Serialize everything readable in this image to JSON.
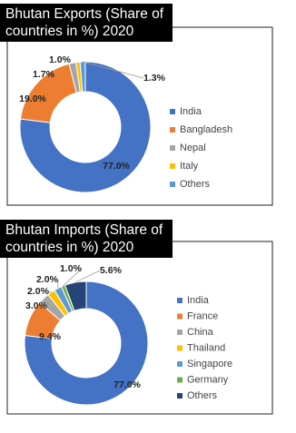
{
  "chart_data": [
    {
      "type": "pie",
      "title": "Bhutan Exports (Share of countries in %) 2020",
      "categories": [
        "India",
        "Bangladesh",
        "Nepal",
        "Italy",
        "Others"
      ],
      "values": [
        77.0,
        19.0,
        1.7,
        1.0,
        1.3
      ],
      "value_labels": [
        "77.0%",
        "19.0%",
        "1.7%",
        "1.0%",
        "1.3%"
      ],
      "colors": [
        "#4472c4",
        "#ed7d31",
        "#a5a5a5",
        "#ffc000",
        "#5b9bd5"
      ]
    },
    {
      "type": "pie",
      "title": "Bhutan Imports (Share of countries in %) 2020",
      "categories": [
        "India",
        "France",
        "China",
        "Thailand",
        "Singapore",
        "Germany",
        "Others"
      ],
      "values": [
        77.0,
        9.4,
        3.0,
        2.0,
        2.0,
        1.0,
        5.6
      ],
      "value_labels": [
        "77.0%",
        "9.4%",
        "3.0%",
        "2.0%",
        "2.0%",
        "1.0%",
        "5.6%"
      ],
      "colors": [
        "#4472c4",
        "#ed7d31",
        "#a5a5a5",
        "#ffc000",
        "#5b9bd5",
        "#70ad47",
        "#264478"
      ]
    }
  ]
}
